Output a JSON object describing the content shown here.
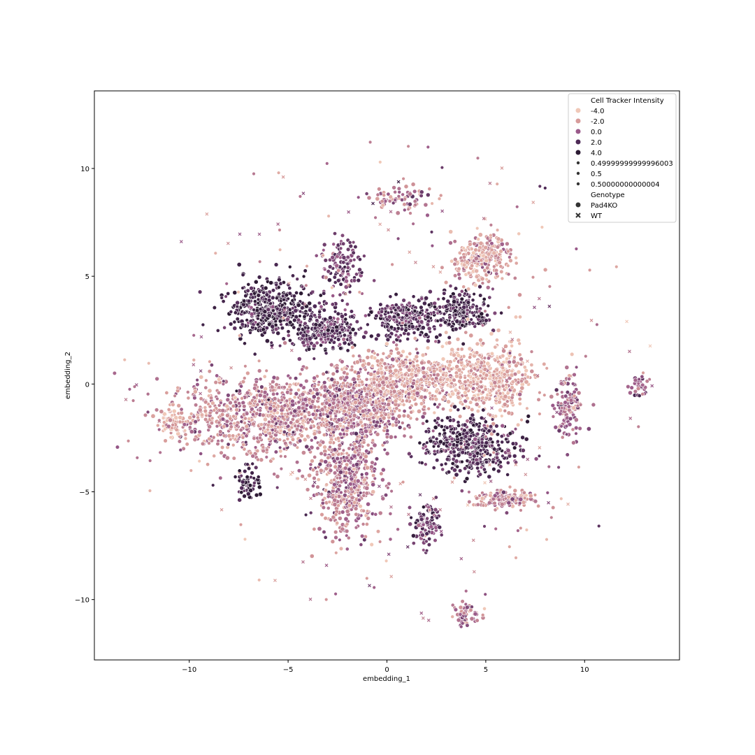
{
  "chart_data": {
    "type": "scatter",
    "title": "",
    "xlabel": "embedding_1",
    "ylabel": "embedding_2",
    "xlim": [
      -14.8,
      14.8
    ],
    "ylim": [
      -12.8,
      13.6
    ],
    "xticks": [
      -10,
      -5,
      0,
      5,
      10
    ],
    "yticks": [
      -10,
      -5,
      0,
      5,
      10
    ],
    "xtick_labels": [
      "−10",
      "−5",
      "0",
      "5",
      "10"
    ],
    "ytick_labels": [
      "−10",
      "−5",
      "0",
      "5",
      "10"
    ],
    "grid": false,
    "legend": {
      "placement": "top-right",
      "hue_title": "Cell Tracker Intensity",
      "hue_entries": [
        {
          "label": "-4.0",
          "color": "#f0c8b8"
        },
        {
          "label": "-2.0",
          "color": "#d79b9a"
        },
        {
          "label": "0.0",
          "color": "#9a5a8a"
        },
        {
          "label": "2.0",
          "color": "#4e2a56"
        },
        {
          "label": "4.0",
          "color": "#2c1a33"
        }
      ],
      "size_entries": [
        {
          "label": "0.49999999999996003"
        },
        {
          "label": "0.5"
        },
        {
          "label": "0.50000000000004"
        }
      ],
      "style_title": "Genotype",
      "style_entries": [
        {
          "label": "Pad4KO",
          "marker": "circle"
        },
        {
          "label": "WT",
          "marker": "x"
        }
      ]
    },
    "clusters": [
      {
        "cx": -6.0,
        "cy": 3.5,
        "rx": 2.2,
        "ry": 1.3,
        "n": 420,
        "hue": 2.8
      },
      {
        "cx": -3.0,
        "cy": 2.5,
        "rx": 1.8,
        "ry": 1.0,
        "n": 280,
        "hue": 2.0
      },
      {
        "cx": -2.3,
        "cy": 5.5,
        "rx": 1.0,
        "ry": 1.4,
        "n": 120,
        "hue": 1.0
      },
      {
        "cx": 1.0,
        "cy": 3.0,
        "rx": 1.8,
        "ry": 1.0,
        "n": 230,
        "hue": 2.0
      },
      {
        "cx": 3.8,
        "cy": 3.4,
        "rx": 1.6,
        "ry": 0.8,
        "n": 200,
        "hue": 2.5
      },
      {
        "cx": 4.8,
        "cy": 5.8,
        "rx": 1.5,
        "ry": 1.1,
        "n": 260,
        "hue": -2.2
      },
      {
        "cx": 0.8,
        "cy": 8.6,
        "rx": 1.5,
        "ry": 0.6,
        "n": 70,
        "hue": -1.0
      },
      {
        "cx": -6.0,
        "cy": -1.5,
        "rx": 4.6,
        "ry": 1.9,
        "n": 900,
        "hue": -1.4
      },
      {
        "cx": -1.5,
        "cy": -1.0,
        "rx": 3.0,
        "ry": 1.6,
        "n": 600,
        "hue": -1.0
      },
      {
        "cx": 1.0,
        "cy": 0.2,
        "rx": 2.6,
        "ry": 1.4,
        "n": 500,
        "hue": -2.0
      },
      {
        "cx": 5.2,
        "cy": 0.3,
        "rx": 2.2,
        "ry": 1.7,
        "n": 450,
        "hue": -2.8
      },
      {
        "cx": -2.0,
        "cy": -4.5,
        "rx": 1.6,
        "ry": 2.6,
        "n": 480,
        "hue": -1.0
      },
      {
        "cx": 4.2,
        "cy": -2.8,
        "rx": 2.4,
        "ry": 1.3,
        "n": 420,
        "hue": 2.2
      },
      {
        "cx": 6.0,
        "cy": -5.3,
        "rx": 1.7,
        "ry": 0.4,
        "n": 140,
        "hue": -1.6
      },
      {
        "cx": 2.0,
        "cy": -6.5,
        "rx": 0.7,
        "ry": 1.0,
        "n": 90,
        "hue": 1.2
      },
      {
        "cx": 9.2,
        "cy": -1.2,
        "rx": 0.7,
        "ry": 1.4,
        "n": 130,
        "hue": -0.3
      },
      {
        "cx": 12.8,
        "cy": -0.2,
        "rx": 0.5,
        "ry": 0.6,
        "n": 40,
        "hue": 0.2
      },
      {
        "cx": -7.0,
        "cy": -4.6,
        "rx": 0.6,
        "ry": 0.8,
        "n": 60,
        "hue": 3.0
      },
      {
        "cx": 4.0,
        "cy": -10.7,
        "rx": 0.8,
        "ry": 0.5,
        "n": 60,
        "hue": -1.0
      },
      {
        "cx": -10.8,
        "cy": -1.8,
        "rx": 0.7,
        "ry": 0.7,
        "n": 60,
        "hue": -2.5
      }
    ]
  }
}
